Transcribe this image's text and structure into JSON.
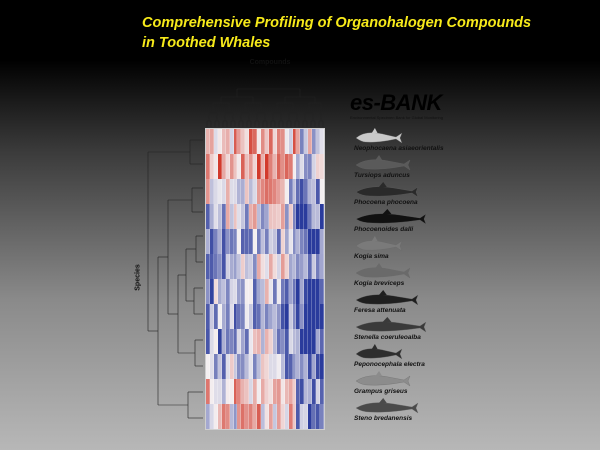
{
  "title": {
    "line1": "Comprehensive Profiling of Organohalogen Compounds",
    "line2": "in Toothed Whales"
  },
  "axes": {
    "top_label": "Compounds",
    "left_label": "Species"
  },
  "logo": {
    "name": "es-BANK",
    "subtitle": "Environmental Specimen Bank for Global Monitoring"
  },
  "colors": {
    "red": "#d23a2c",
    "blue": "#2a3b9c",
    "white": "#f4f0f2",
    "title_yellow": "#f7ea1a"
  },
  "species": [
    "Neophocaena asiaeorientalis",
    "Tursiops aduncus",
    "Phocoena phocoena",
    "Phocoenoides dalli",
    "Kogia sima",
    "Kogia breviceps",
    "Feresa attenuata",
    "Stenella coeruleoalba",
    "Peponocephala electra",
    "Grampus griseus",
    "Steno bredanensis"
  ]
}
